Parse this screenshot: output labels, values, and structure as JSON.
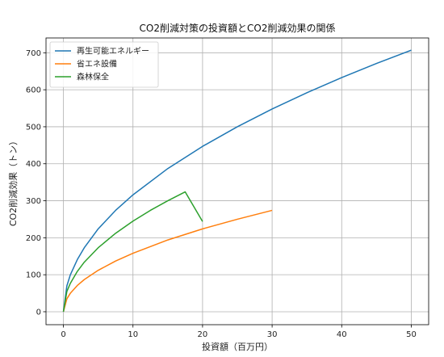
{
  "chart_data": {
    "type": "line",
    "title": "CO2削減対策の投資額とCO2削減効果の関係",
    "xlabel": "投資額（百万円）",
    "ylabel": "CO2削減効果（トン）",
    "xlim": [
      -2.5,
      52.5
    ],
    "ylim": [
      -35,
      740
    ],
    "xticks": [
      0,
      10,
      20,
      30,
      40,
      50
    ],
    "yticks": [
      0,
      100,
      200,
      300,
      400,
      500,
      600,
      700
    ],
    "grid": true,
    "legend_position": "upper-left",
    "series": [
      {
        "name": "再生可能エネルギー",
        "color": "#1f77b4",
        "x": [
          0,
          0.5,
          1,
          2,
          3,
          5,
          7.5,
          10,
          15,
          20,
          25,
          30,
          35,
          40,
          45,
          50
        ],
        "y": [
          0,
          70,
          100,
          141,
          173,
          224,
          274,
          316,
          387,
          447,
          500,
          548,
          592,
          633,
          671,
          707
        ]
      },
      {
        "name": "省エネ設備",
        "color": "#ff7f0e",
        "x": [
          0,
          0.5,
          1,
          2,
          3,
          5,
          7.5,
          10,
          15,
          20,
          25,
          30
        ],
        "y": [
          0,
          35,
          50,
          71,
          87,
          112,
          137,
          158,
          194,
          224,
          250,
          274
        ]
      },
      {
        "name": "森林保全",
        "color": "#2ca02c",
        "x": [
          0,
          0.5,
          1,
          2,
          3,
          5,
          7.5,
          10,
          12.5,
          15,
          17.5,
          20
        ],
        "y": [
          0,
          55,
          77,
          109,
          134,
          173,
          212,
          245,
          274,
          300,
          324,
          244
        ]
      }
    ]
  }
}
